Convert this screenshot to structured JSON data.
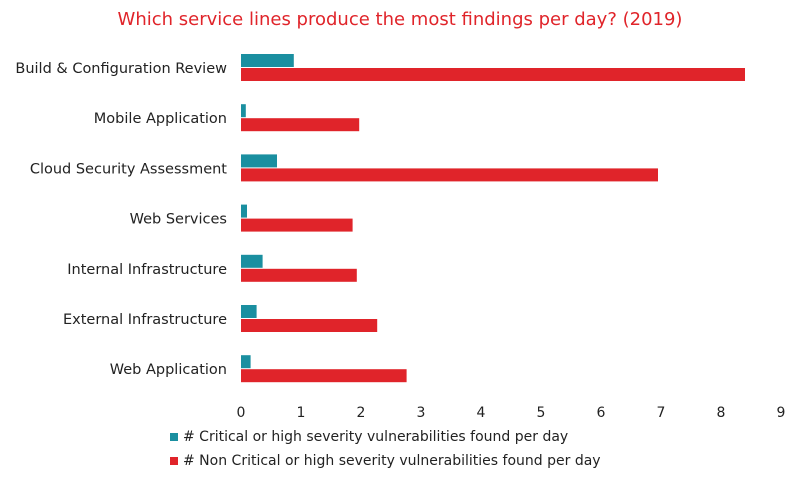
{
  "chart_data": {
    "type": "bar",
    "orientation": "horizontal",
    "title": "Which service lines produce the most findings per day? (2019)",
    "categories": [
      "Build & Configuration Review",
      "Mobile Application",
      "Cloud Security Assessment",
      "Web Services",
      "Internal Infrastructure",
      "External Infrastructure",
      "Web Application"
    ],
    "series": [
      {
        "name": "# Critical or high severity vulnerabilities found per day",
        "color": "#1a8fa0",
        "values": [
          0.88,
          0.08,
          0.6,
          0.1,
          0.36,
          0.26,
          0.16
        ]
      },
      {
        "name": "# Non Critical or high severity vulnerabilities found per day",
        "color": "#e0242a",
        "values": [
          8.4,
          1.97,
          6.95,
          1.86,
          1.93,
          2.27,
          2.76
        ]
      }
    ],
    "xlim": [
      0,
      9
    ],
    "xticks": [
      0,
      1,
      2,
      3,
      4,
      5,
      6,
      7,
      8,
      9
    ],
    "grid": false,
    "legend_position": "bottom",
    "title_color": "#e0242a"
  }
}
